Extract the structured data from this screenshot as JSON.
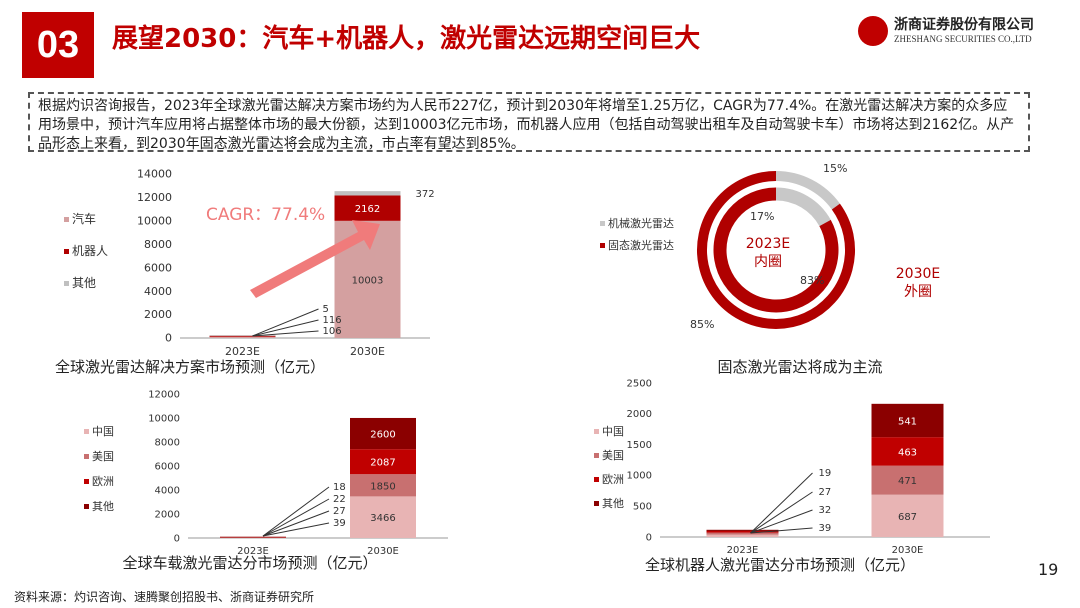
{
  "header": {
    "section_number": "03",
    "title": "展望2030：汽车+机器人，激光雷达远期空间巨大",
    "logo_cn": "浙商证券股份有限公司",
    "logo_en": "ZHESHANG SECURITIES CO.,LTD"
  },
  "summary": "根据灼识咨询报告，2023年全球激光雷达解决方案市场约为人民币227亿，预计到2030年将增至1.25万亿，CAGR为77.4%。在激光雷达解决方案的众多应用场景中，预计汽车应用将占据整体市场的最大份额，达到10003亿元市场，而机器人应用（包括自动驾驶出租车及自动驾驶卡车）市场将达到2162亿。从产品形态上来看，到2030年固态激光雷达将会成为主流，市占率有望达到85%。",
  "chart_data": [
    {
      "type": "bar",
      "title": "全球激光雷达解决方案市场预测（亿元）",
      "categories": [
        "2023E",
        "2030E"
      ],
      "series": [
        {
          "name": "汽车",
          "values": [
            106,
            10003
          ],
          "color": "#d4a0a0"
        },
        {
          "name": "机器人",
          "values": [
            116,
            2162
          ],
          "color": "#b00000"
        },
        {
          "name": "其他",
          "values": [
            5,
            372
          ],
          "color": "#c0c0c0"
        }
      ],
      "ylim": [
        0,
        14000
      ],
      "yticks": [
        "0",
        "2000",
        "4000",
        "6000",
        "8000",
        "10000",
        "12000",
        "14000"
      ],
      "annotation": "CAGR：77.4%",
      "legend": "left"
    },
    {
      "type": "pie",
      "title": "固态激光雷达将成为主流",
      "series": [
        {
          "name": "内圈",
          "label": "2023E\n内圈",
          "values": [
            17,
            83
          ],
          "labels": [
            "17%",
            "83%"
          ]
        },
        {
          "name": "外圈",
          "label": "2030E\n外圈",
          "values": [
            15,
            85
          ],
          "labels": [
            "15%",
            "85%"
          ]
        }
      ],
      "categories": [
        "机械激光雷达",
        "固态激光雷达"
      ],
      "colors": [
        "#c8c8c8",
        "#b00000"
      ],
      "legend": "left",
      "inner_label_1": "2023E",
      "inner_label_2": "内圈",
      "outer_label_1": "2030E",
      "outer_label_2": "外圈"
    },
    {
      "type": "bar",
      "title": "全球车载激光雷达分市场预测（亿元）",
      "categories": [
        "2023E",
        "2030E"
      ],
      "series": [
        {
          "name": "中国",
          "values": [
            39,
            3466
          ],
          "color": "#e8b4b4"
        },
        {
          "name": "美国",
          "values": [
            27,
            1850
          ],
          "color": "#c87070"
        },
        {
          "name": "欧洲",
          "values": [
            22,
            2087
          ],
          "color": "#c00000"
        },
        {
          "name": "其他",
          "values": [
            18,
            2600
          ],
          "color": "#8b0000"
        }
      ],
      "ylim": [
        0,
        12000
      ],
      "yticks": [
        "0",
        "2000",
        "4000",
        "6000",
        "8000",
        "10000",
        "12000"
      ],
      "legend": "left"
    },
    {
      "type": "bar",
      "title": "全球机器人激光雷达分市场预测（亿元）",
      "categories": [
        "2023E",
        "2030E"
      ],
      "series": [
        {
          "name": "中国",
          "values": [
            39,
            687
          ],
          "color": "#e8b4b4"
        },
        {
          "name": "美国",
          "values": [
            32,
            471
          ],
          "color": "#c87070"
        },
        {
          "name": "欧洲",
          "values": [
            27,
            463
          ],
          "color": "#c00000"
        },
        {
          "name": "其他",
          "values": [
            19,
            541
          ],
          "color": "#8b0000"
        }
      ],
      "ylim": [
        0,
        2500
      ],
      "yticks": [
        "0",
        "500",
        "1000",
        "1500",
        "2000",
        "2500"
      ],
      "legend": "left"
    }
  ],
  "footer": {
    "source": "资料来源：灼识咨询、速腾聚创招股书、浙商证券研究所",
    "page": "19"
  }
}
